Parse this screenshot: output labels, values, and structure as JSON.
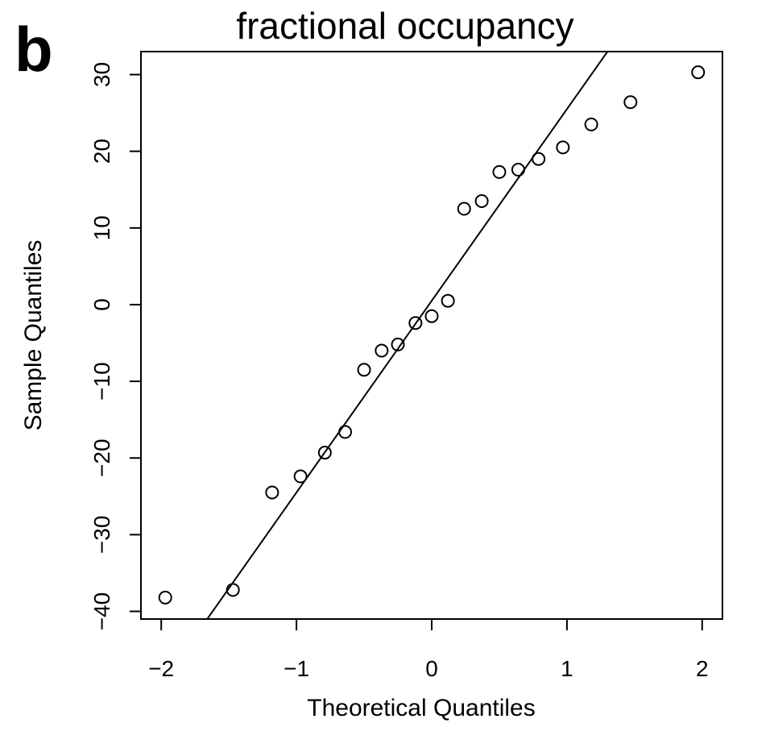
{
  "panel_label": "b",
  "chart_data": {
    "type": "scatter",
    "title": "fractional occupancy",
    "xlabel": "Theoretical Quantiles",
    "ylabel": "Sample Quantiles",
    "xlim": [
      -2.15,
      2.15
    ],
    "ylim": [
      -41,
      33
    ],
    "x_ticks": [
      -2,
      -1,
      0,
      1,
      2
    ],
    "x_tick_labels": [
      "−2",
      "−1",
      "0",
      "1",
      "2"
    ],
    "y_ticks": [
      -40,
      -30,
      -20,
      -10,
      0,
      10,
      20,
      30
    ],
    "y_tick_labels": [
      "−40",
      "−30",
      "−20",
      "−10",
      "0",
      "10",
      "20",
      "30"
    ],
    "grid": false,
    "marker": "open-circle",
    "points": [
      {
        "x": -1.97,
        "y": -38.2
      },
      {
        "x": -1.47,
        "y": -37.2
      },
      {
        "x": -1.18,
        "y": -24.5
      },
      {
        "x": -0.97,
        "y": -22.4
      },
      {
        "x": -0.79,
        "y": -19.3
      },
      {
        "x": -0.64,
        "y": -16.6
      },
      {
        "x": -0.5,
        "y": -8.5
      },
      {
        "x": -0.37,
        "y": -6.0
      },
      {
        "x": -0.25,
        "y": -5.2
      },
      {
        "x": -0.12,
        "y": -2.4
      },
      {
        "x": 0.0,
        "y": -1.5
      },
      {
        "x": 0.12,
        "y": 0.5
      },
      {
        "x": 0.24,
        "y": 12.5
      },
      {
        "x": 0.37,
        "y": 13.5
      },
      {
        "x": 0.5,
        "y": 17.3
      },
      {
        "x": 0.64,
        "y": 17.6
      },
      {
        "x": 0.79,
        "y": 19.0
      },
      {
        "x": 0.97,
        "y": 20.5
      },
      {
        "x": 1.18,
        "y": 23.5
      },
      {
        "x": 1.47,
        "y": 26.4
      },
      {
        "x": 1.97,
        "y": 30.3
      }
    ],
    "reference_line": {
      "intercept": 0.5,
      "slope": 25.0
    }
  }
}
